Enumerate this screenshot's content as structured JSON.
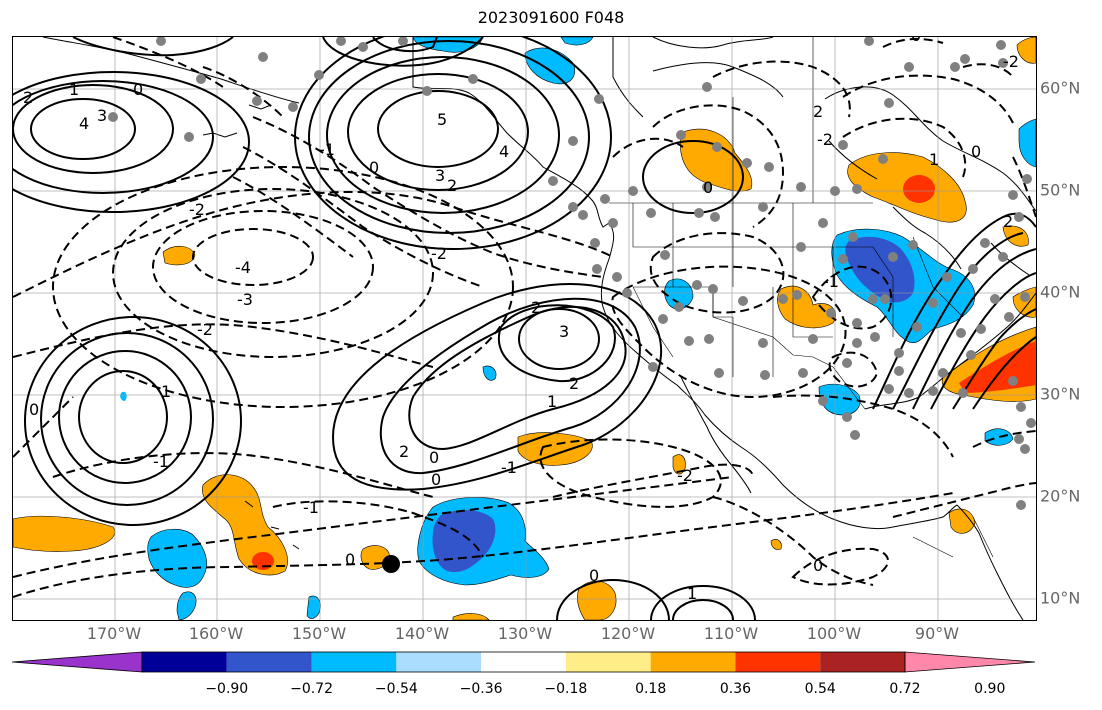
{
  "title": "2023091600 F048",
  "lon_labels": [
    "170°W",
    "160°W",
    "150°W",
    "140°W",
    "130°W",
    "120°W",
    "110°W",
    "100°W",
    "90°W"
  ],
  "lat_labels": [
    "60°N",
    "50°N",
    "40°N",
    "30°N",
    "20°N",
    "10°N"
  ],
  "colorbar": {
    "labels": [
      "−0.90",
      "−0.72",
      "−0.54",
      "−0.36",
      "−0.18",
      "0.18",
      "0.36",
      "0.54",
      "0.72",
      "0.90"
    ],
    "colors": [
      "#9933cc",
      "#000099",
      "#3355cc",
      "#00bbff",
      "#aaddff",
      "#ffffff",
      "#ffee88",
      "#ffaa00",
      "#ff3300",
      "#aa2222",
      "#ff88aa"
    ]
  },
  "contour_labels": [
    "2",
    "1",
    "0",
    "3",
    "4",
    "5",
    "4",
    "3",
    "2",
    "0",
    "-1",
    "-2",
    "-3",
    "-4",
    "-2",
    "2",
    "3",
    "2",
    "1",
    "0",
    "-1",
    "-2",
    "0",
    "-1",
    "1",
    "2",
    "0",
    "0",
    "-1",
    "0",
    "-2",
    "1",
    "0",
    "0",
    "2",
    "-2",
    "1",
    "0",
    "2",
    "-1",
    "0",
    "-2"
  ],
  "colors": {
    "contour": "#000000",
    "coast": "#000000",
    "grid": "#999999",
    "station": "#808080"
  }
}
